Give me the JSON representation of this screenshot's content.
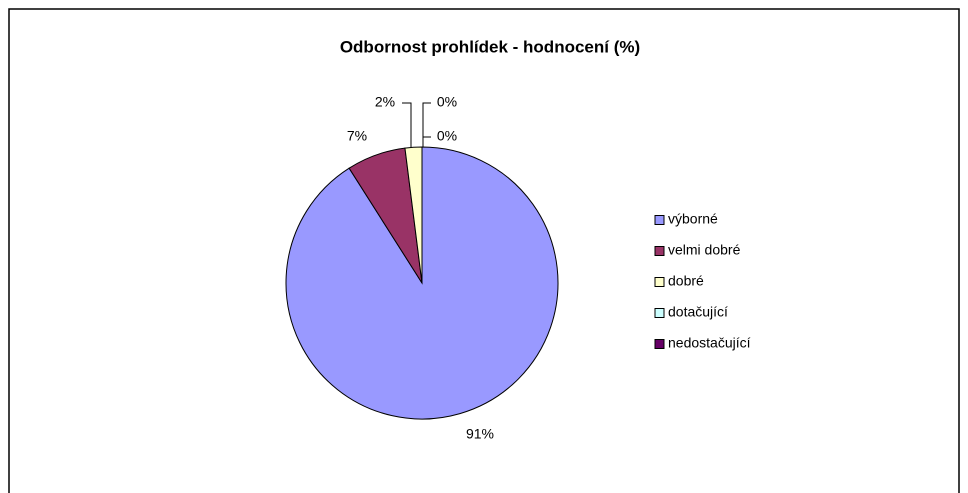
{
  "chart_data": {
    "type": "pie",
    "title": "Odbornost prohlídek - hodnocení (%)",
    "categories": [
      "výborné",
      "velmi dobré",
      "dobré",
      "dotačující",
      "nedostačující"
    ],
    "values": [
      91,
      7,
      2,
      0,
      0
    ],
    "value_labels": [
      "91%",
      "7%",
      "2%",
      "0%",
      "0%"
    ],
    "colors": [
      "#9999ff",
      "#993366",
      "#ffffcc",
      "#ccffff",
      "#660066"
    ],
    "legend": "right"
  }
}
